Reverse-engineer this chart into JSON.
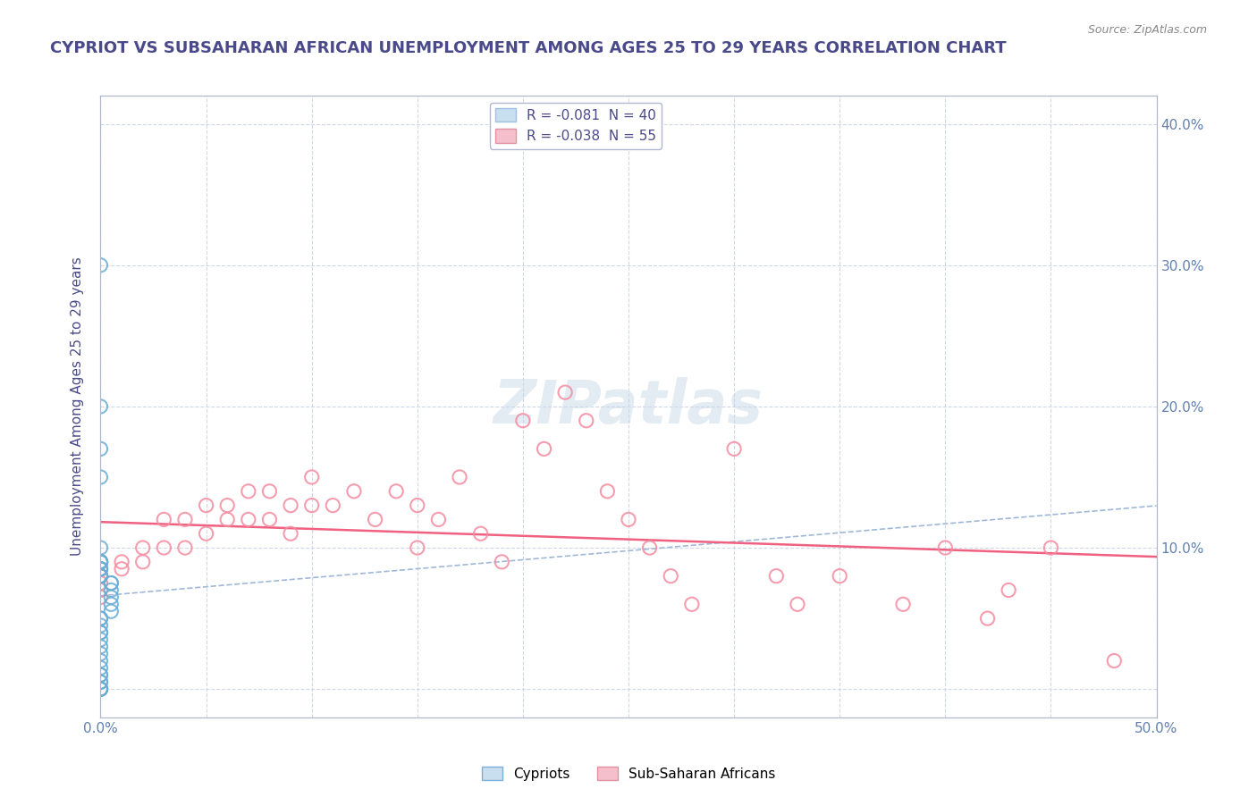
{
  "title": "CYPRIOT VS SUBSAHARAN AFRICAN UNEMPLOYMENT AMONG AGES 25 TO 29 YEARS CORRELATION CHART",
  "source": "Source: ZipAtlas.com",
  "xlabel": "",
  "ylabel": "Unemployment Among Ages 25 to 29 years",
  "xlim": [
    0.0,
    0.5
  ],
  "ylim": [
    -0.02,
    0.42
  ],
  "xticks": [
    0.0,
    0.05,
    0.1,
    0.15,
    0.2,
    0.25,
    0.3,
    0.35,
    0.4,
    0.45,
    0.5
  ],
  "yticks": [
    0.0,
    0.1,
    0.2,
    0.3,
    0.4
  ],
  "ytick_labels": [
    "0.0%",
    "10.0%",
    "20.0%",
    "30.0%",
    "40.0%"
  ],
  "xtick_labels": [
    "0.0%",
    "",
    "",
    "",
    "",
    "",
    "",
    "",
    "",
    "",
    "50.0%"
  ],
  "right_ytick_labels": [
    "40.0%",
    "30.0%",
    "20.0%",
    "10.0%"
  ],
  "right_yticks": [
    0.4,
    0.3,
    0.2,
    0.1
  ],
  "legend_entries": [
    {
      "label": "R = -0.081  N = 40",
      "color": "#a8c8f0"
    },
    {
      "label": "R = -0.038  N = 55",
      "color": "#f0a8b8"
    }
  ],
  "cypriot_color": "#6aaed6",
  "subsaharan_color": "#f48ca0",
  "cypriot_x": [
    0.0,
    0.0,
    0.0,
    0.0,
    0.0,
    0.0,
    0.0,
    0.0,
    0.0,
    0.0,
    0.0,
    0.0,
    0.0,
    0.0,
    0.0,
    0.0,
    0.005,
    0.005,
    0.005,
    0.005,
    0.005,
    0.005,
    0.0,
    0.0,
    0.0,
    0.0,
    0.0,
    0.0,
    0.0,
    0.0,
    0.0,
    0.0,
    0.0,
    0.0,
    0.0,
    0.0,
    0.0,
    0.0,
    0.0,
    0.0
  ],
  "cypriot_y": [
    0.3,
    0.2,
    0.17,
    0.15,
    0.1,
    0.09,
    0.09,
    0.09,
    0.09,
    0.09,
    0.085,
    0.085,
    0.085,
    0.08,
    0.08,
    0.08,
    0.075,
    0.075,
    0.07,
    0.065,
    0.06,
    0.055,
    0.05,
    0.05,
    0.045,
    0.04,
    0.04,
    0.035,
    0.03,
    0.025,
    0.02,
    0.015,
    0.01,
    0.01,
    0.005,
    0.005,
    0.0,
    0.0,
    0.0,
    0.0
  ],
  "subsaharan_x": [
    0.0,
    0.0,
    0.0,
    0.0,
    0.0,
    0.0,
    0.01,
    0.01,
    0.02,
    0.02,
    0.03,
    0.03,
    0.04,
    0.04,
    0.05,
    0.05,
    0.06,
    0.06,
    0.07,
    0.07,
    0.08,
    0.08,
    0.09,
    0.09,
    0.1,
    0.1,
    0.11,
    0.12,
    0.13,
    0.14,
    0.15,
    0.15,
    0.16,
    0.17,
    0.18,
    0.19,
    0.2,
    0.21,
    0.22,
    0.23,
    0.24,
    0.25,
    0.26,
    0.27,
    0.28,
    0.3,
    0.32,
    0.33,
    0.35,
    0.38,
    0.4,
    0.42,
    0.43,
    0.45,
    0.48
  ],
  "subsaharan_y": [
    0.09,
    0.085,
    0.08,
    0.075,
    0.07,
    0.065,
    0.09,
    0.085,
    0.1,
    0.09,
    0.12,
    0.1,
    0.12,
    0.1,
    0.13,
    0.11,
    0.13,
    0.12,
    0.14,
    0.12,
    0.14,
    0.12,
    0.13,
    0.11,
    0.15,
    0.13,
    0.13,
    0.14,
    0.12,
    0.14,
    0.13,
    0.1,
    0.12,
    0.15,
    0.11,
    0.09,
    0.19,
    0.17,
    0.21,
    0.19,
    0.14,
    0.12,
    0.1,
    0.08,
    0.06,
    0.17,
    0.08,
    0.06,
    0.08,
    0.06,
    0.1,
    0.05,
    0.07,
    0.1,
    0.02
  ],
  "watermark": "ZIPatlas",
  "background_color": "#ffffff",
  "grid_color": "#d0d8e8",
  "title_color": "#4a4a8a",
  "axis_label_color": "#4a4a8a",
  "tick_color": "#6080b0"
}
